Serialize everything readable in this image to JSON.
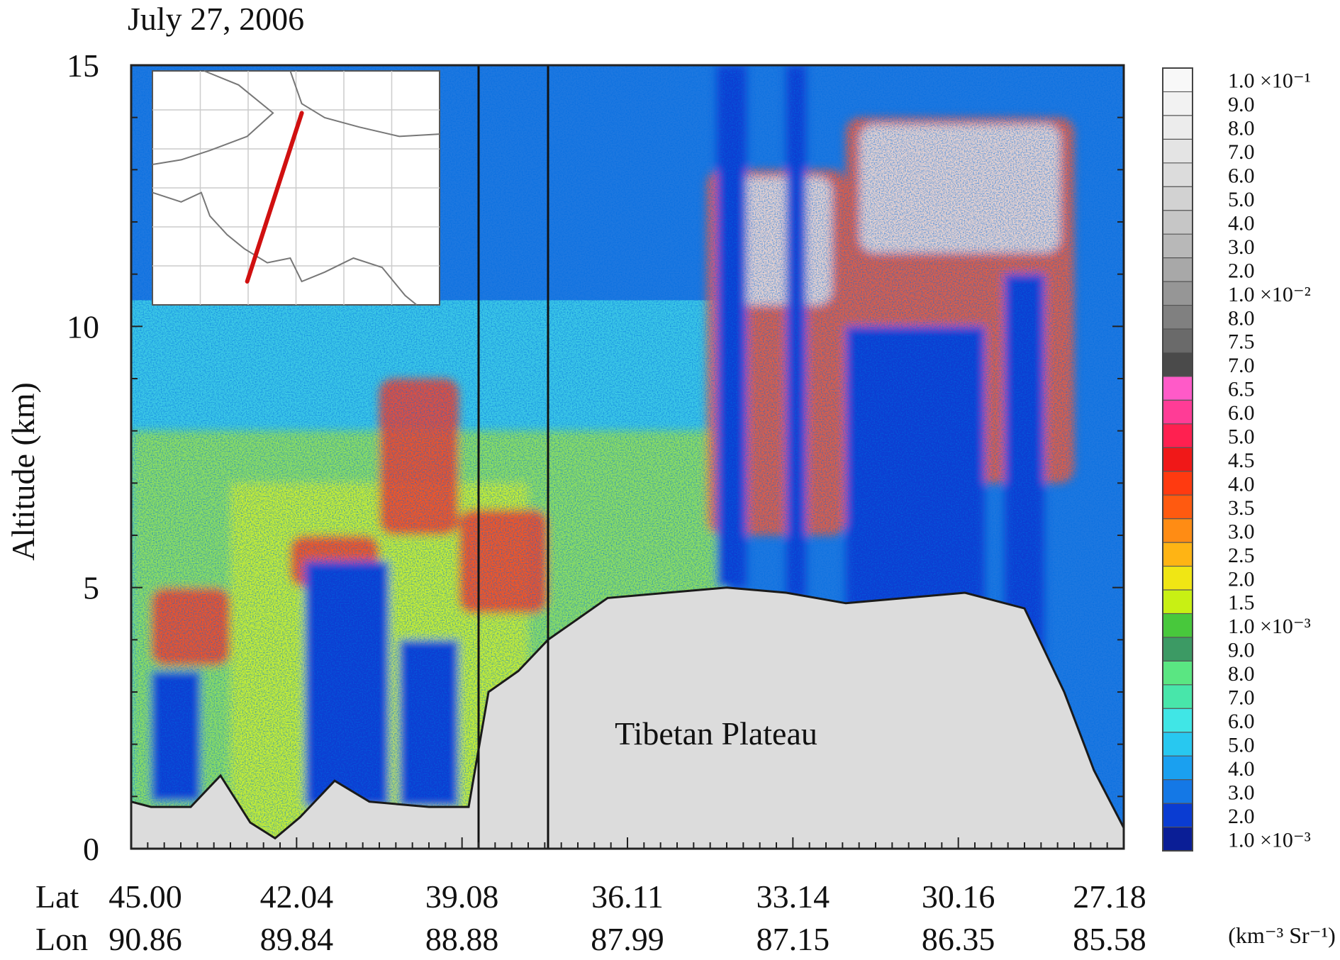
{
  "chart_data": {
    "type": "heatmap",
    "title": "July 27, 2006",
    "ylabel": "Altitude (km)",
    "ylim": [
      0,
      15
    ],
    "yticks": [
      "0",
      "5",
      "10",
      "15"
    ],
    "xticks": {
      "row_labels": [
        "Lat",
        "Lon"
      ],
      "lat": [
        "45.00",
        "42.04",
        "39.08",
        "36.11",
        "33.14",
        "30.16",
        "27.18"
      ],
      "lon": [
        "90.86",
        "89.84",
        "88.88",
        "87.99",
        "87.15",
        "86.35",
        "85.58"
      ]
    },
    "annotation": "Tibetan Plateau",
    "inset": "map of orbit track (red line)",
    "vertical_markers_km_index": [
      0.35,
      0.42
    ],
    "surface_profile_km": [
      [
        0.0,
        0.9
      ],
      [
        0.02,
        0.8
      ],
      [
        0.06,
        0.8
      ],
      [
        0.09,
        1.4
      ],
      [
        0.12,
        0.5
      ],
      [
        0.145,
        0.2
      ],
      [
        0.17,
        0.6
      ],
      [
        0.205,
        1.3
      ],
      [
        0.24,
        0.9
      ],
      [
        0.3,
        0.8
      ],
      [
        0.34,
        0.8
      ],
      [
        0.36,
        3.0
      ],
      [
        0.39,
        3.4
      ],
      [
        0.42,
        4.0
      ],
      [
        0.45,
        4.4
      ],
      [
        0.48,
        4.8
      ],
      [
        0.54,
        4.9
      ],
      [
        0.6,
        5.0
      ],
      [
        0.66,
        4.9
      ],
      [
        0.72,
        4.7
      ],
      [
        0.78,
        4.8
      ],
      [
        0.84,
        4.9
      ],
      [
        0.9,
        4.6
      ],
      [
        0.94,
        3.0
      ],
      [
        0.97,
        1.5
      ],
      [
        1.0,
        0.4
      ]
    ],
    "cloud_regions": [
      {
        "x": [
          0.02,
          0.1
        ],
        "y": [
          3.5,
          5.0
        ],
        "level": "high"
      },
      {
        "x": [
          0.16,
          0.25
        ],
        "y": [
          5.0,
          6.0
        ],
        "level": "high"
      },
      {
        "x": [
          0.25,
          0.33
        ],
        "y": [
          6.0,
          9.0
        ],
        "level": "high"
      },
      {
        "x": [
          0.33,
          0.42
        ],
        "y": [
          4.5,
          6.5
        ],
        "level": "high"
      },
      {
        "x": [
          0.58,
          0.72
        ],
        "y": [
          6.0,
          13.0
        ],
        "level": "very_high"
      },
      {
        "x": [
          0.72,
          0.95
        ],
        "y": [
          7.0,
          14.0
        ],
        "level": "very_high"
      }
    ],
    "colorbar": {
      "labels": [
        "1.0 ×10⁻¹",
        "9.0",
        "8.0",
        "7.0",
        "6.0",
        "5.0",
        "4.0",
        "3.0",
        "2.0",
        "1.0 ×10⁻²",
        "8.0",
        "7.5",
        "7.0",
        "6.5",
        "6.0",
        "5.0",
        "4.5",
        "4.0",
        "3.5",
        "3.0",
        "2.5",
        "2.0",
        "1.5",
        "1.0 ×10⁻³",
        "9.0",
        "8.0",
        "7.0",
        "6.0",
        "5.0",
        "4.0",
        "3.0",
        "2.0",
        "1.0 ×10⁻³"
      ],
      "colors": [
        "#f8f8f8",
        "#f2f2f2",
        "#ececec",
        "#e4e4e4",
        "#dcdcdc",
        "#d2d2d2",
        "#c6c6c6",
        "#b8b8b8",
        "#a8a8a8",
        "#969696",
        "#808080",
        "#6a6a6a",
        "#4a4a4a",
        "#ff5ac8",
        "#ff3c96",
        "#ff2050",
        "#f01818",
        "#ff3a10",
        "#ff5a10",
        "#ff8c14",
        "#ffb414",
        "#f0e614",
        "#c8f014",
        "#48c83c",
        "#3c9a64",
        "#5ae682",
        "#48e6aa",
        "#40e6e6",
        "#28c8f0",
        "#1aa0f0",
        "#1478e6",
        "#0a3cd2",
        "#0a1e96"
      ],
      "units": "(km⁻³ Sr⁻¹)"
    }
  }
}
